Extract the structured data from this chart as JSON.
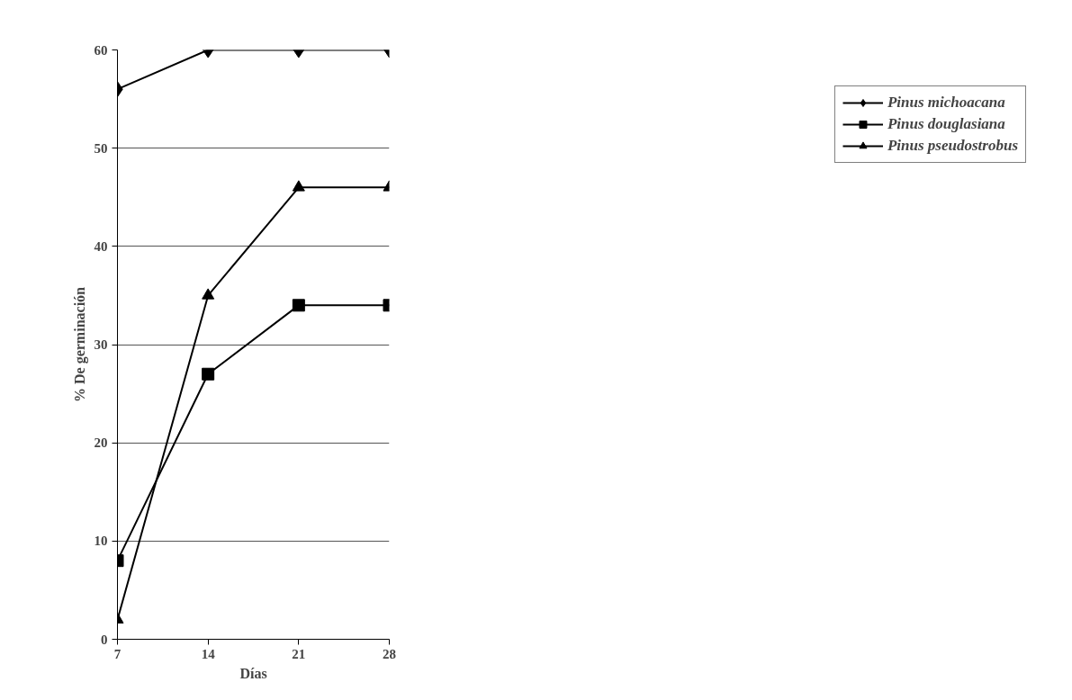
{
  "chart_data": {
    "type": "line",
    "xlabel": "Días",
    "ylabel": "% De germinación",
    "x": [
      7,
      14,
      21,
      28
    ],
    "xlim": [
      7,
      28
    ],
    "xticks": [
      7,
      14,
      21,
      28
    ],
    "ylim": [
      0,
      60
    ],
    "yticks": [
      0,
      10,
      20,
      30,
      40,
      50,
      60
    ],
    "grid": "y",
    "legend": "right",
    "line_style": "solid",
    "series": [
      {
        "name": "Pinus michoacana",
        "color": "#000000",
        "marker": "diamond",
        "values": [
          56,
          60,
          60,
          60
        ]
      },
      {
        "name": "Pinus douglasiana",
        "color": "#000000",
        "marker": "square",
        "values": [
          8,
          27,
          34,
          34
        ]
      },
      {
        "name": "Pinus pseudostrobus",
        "color": "#000000",
        "marker": "triangle",
        "values": [
          2,
          35,
          46,
          46
        ]
      }
    ]
  }
}
